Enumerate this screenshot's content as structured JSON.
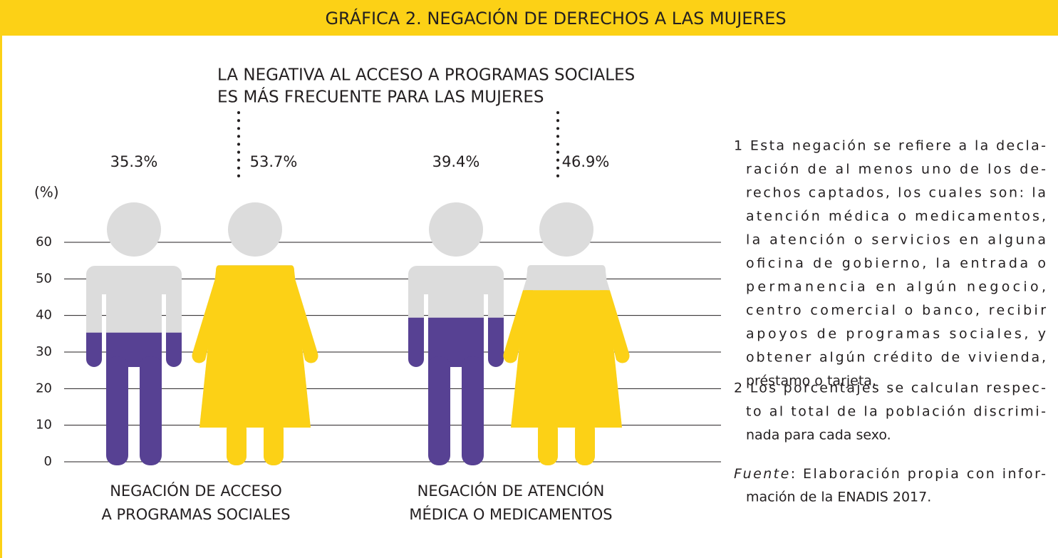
{
  "chart_data": {
    "type": "pictogram",
    "title": "GRÁFICA 2. NEGACIÓN DE DERECHOS  A LAS MUJERES",
    "annotation": [
      "LA NEGATIVA AL ACCESO A PROGRAMAS SOCIALES",
      "ES MÁS FRECUENTE PARA LAS MUJERES"
    ],
    "ylabel": "(%)",
    "categories": [
      [
        "NEGACIÓN DE ACCESO",
        "A PROGRAMAS SOCIALES"
      ],
      [
        "NEGACIÓN DE ATENCIÓN",
        "MÉDICA O MEDICAMENTOS"
      ]
    ],
    "series": [
      {
        "color": "#574193",
        "values": [
          35.3,
          39.4
        ],
        "value_labels": [
          "35.3%",
          "39.4%"
        ]
      },
      {
        "color": "#fcd116",
        "values": [
          53.7,
          46.9
        ],
        "value_labels": [
          "53.7%",
          "46.9%"
        ]
      }
    ],
    "ylim": [
      0,
      60
    ],
    "yticks": [
      0,
      10,
      20,
      30,
      40,
      50,
      60
    ],
    "grid": true,
    "notes": [
      [
        "1 Esta negación se refiere a la decla-",
        "ración de al menos uno de los de-",
        "rechos captados, los cuales son: la",
        "atención médica o medicamentos,",
        "la atención o servicios en alguna",
        "oficina de gobierno, la entrada o",
        "permanencia en algún negocio,",
        "centro comercial o banco, recibir",
        "apoyos de programas sociales, y",
        "obtener algún crédito de vivienda,",
        "préstamo o tarjeta."
      ],
      [
        "2 Los porcentajes se calculan respec-",
        "to al total de la población discrimi-",
        "nada para cada sexo."
      ]
    ],
    "source_label": "Fuente",
    "source_text": [
      ": Elaboración propia con infor-",
      "mación de la ENADIS 2017."
    ]
  }
}
